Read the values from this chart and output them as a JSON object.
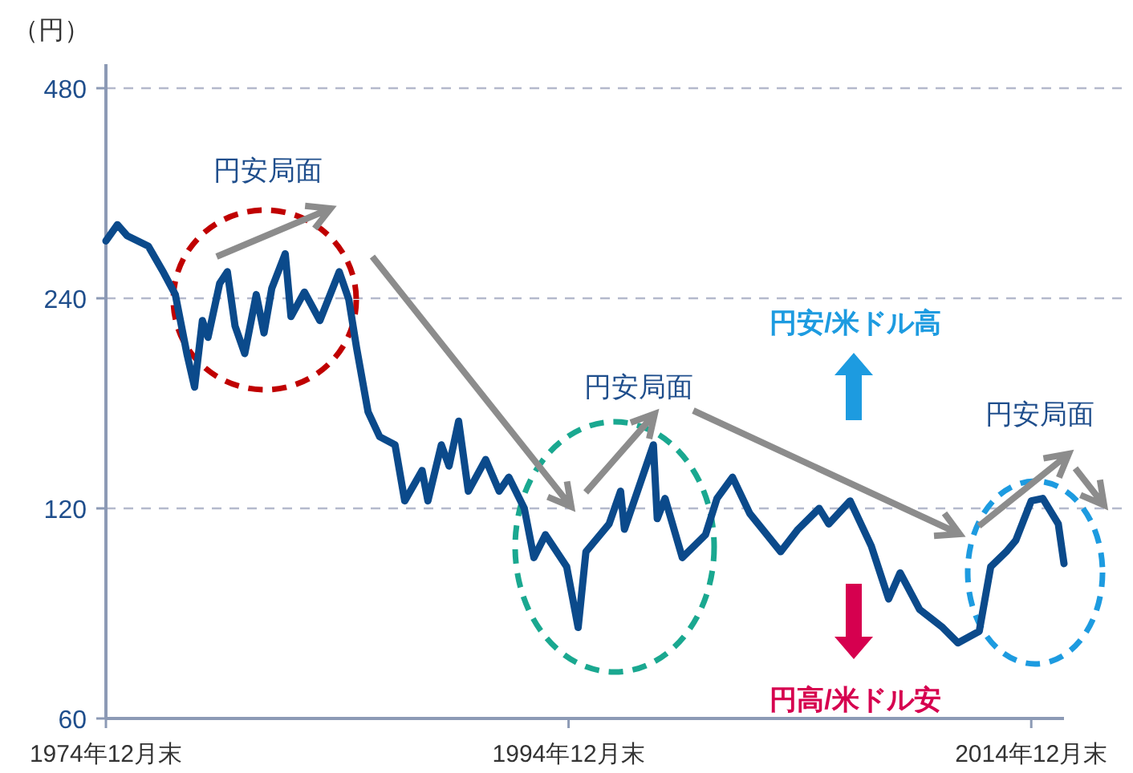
{
  "chart_data": {
    "type": "line",
    "ylabel": "（円）",
    "log": "y",
    "xlim": [
      "1974-12",
      "2016-05"
    ],
    "xticks": [
      {
        "value": "1974-12",
        "label": "1974年12月末"
      },
      {
        "value": "1994-12",
        "label": "1994年12月末"
      },
      {
        "value": "2014-12",
        "label": "2014年12月末"
      }
    ],
    "ylim": [
      60,
      480
    ],
    "yticks": [
      60,
      120,
      240,
      480
    ],
    "grid": "y",
    "series": [
      {
        "color": "#0b4a8b",
        "x": [
          "1974-12",
          "1975-06",
          "1975-11",
          "1976-10",
          "1977-06",
          "1977-12",
          "1978-06",
          "1978-10",
          "1979-02",
          "1979-05",
          "1979-11",
          "1980-03",
          "1980-07",
          "1980-12",
          "1981-06",
          "1981-10",
          "1982-02",
          "1982-09",
          "1982-12",
          "1983-07",
          "1984-03",
          "1985-01",
          "1985-06",
          "1985-10",
          "1986-04",
          "1986-10",
          "1987-06",
          "1987-11",
          "1988-08",
          "1988-11",
          "1989-06",
          "1989-10",
          "1990-03",
          "1990-08",
          "1991-05",
          "1991-12",
          "1992-05",
          "1993-01",
          "1993-06",
          "1993-12",
          "1994-11",
          "1995-05",
          "1995-09",
          "1996-09",
          "1997-03",
          "1997-05",
          "1998-08",
          "1998-10",
          "1999-02",
          "1999-11",
          "2000-11",
          "2001-05",
          "2002-01",
          "2002-10",
          "2004-02",
          "2004-11",
          "2005-10",
          "2006-03",
          "2007-02",
          "2008-01",
          "2008-10",
          "2009-04",
          "2010-02",
          "2011-02",
          "2011-10",
          "2012-09",
          "2013-03",
          "2013-11",
          "2014-04",
          "2014-12",
          "2015-06",
          "2016-02",
          "2016-05"
        ],
        "values": [
          290,
          306,
          295,
          285,
          261,
          243,
          200,
          179,
          223,
          211,
          252,
          262,
          219,
          200,
          243,
          214,
          248,
          278,
          226,
          245,
          223,
          262,
          239,
          204,
          165,
          152,
          148,
          123,
          136,
          123,
          148,
          138,
          160,
          127,
          141,
          127,
          133,
          120,
          102,
          110,
          99,
          81,
          104,
          114,
          127,
          112,
          148,
          116,
          124,
          102,
          110,
          124,
          133,
          118,
          104,
          112,
          120,
          114,
          123,
          106,
          89,
          97,
          86,
          81,
          77,
          80,
          99,
          104,
          108,
          123,
          124,
          114,
          100
        ]
      }
    ],
    "annotations": [
      "円安局面",
      "円安局面",
      "円安局面",
      "円安/米ドル高",
      "円高/米ドル安"
    ]
  }
}
